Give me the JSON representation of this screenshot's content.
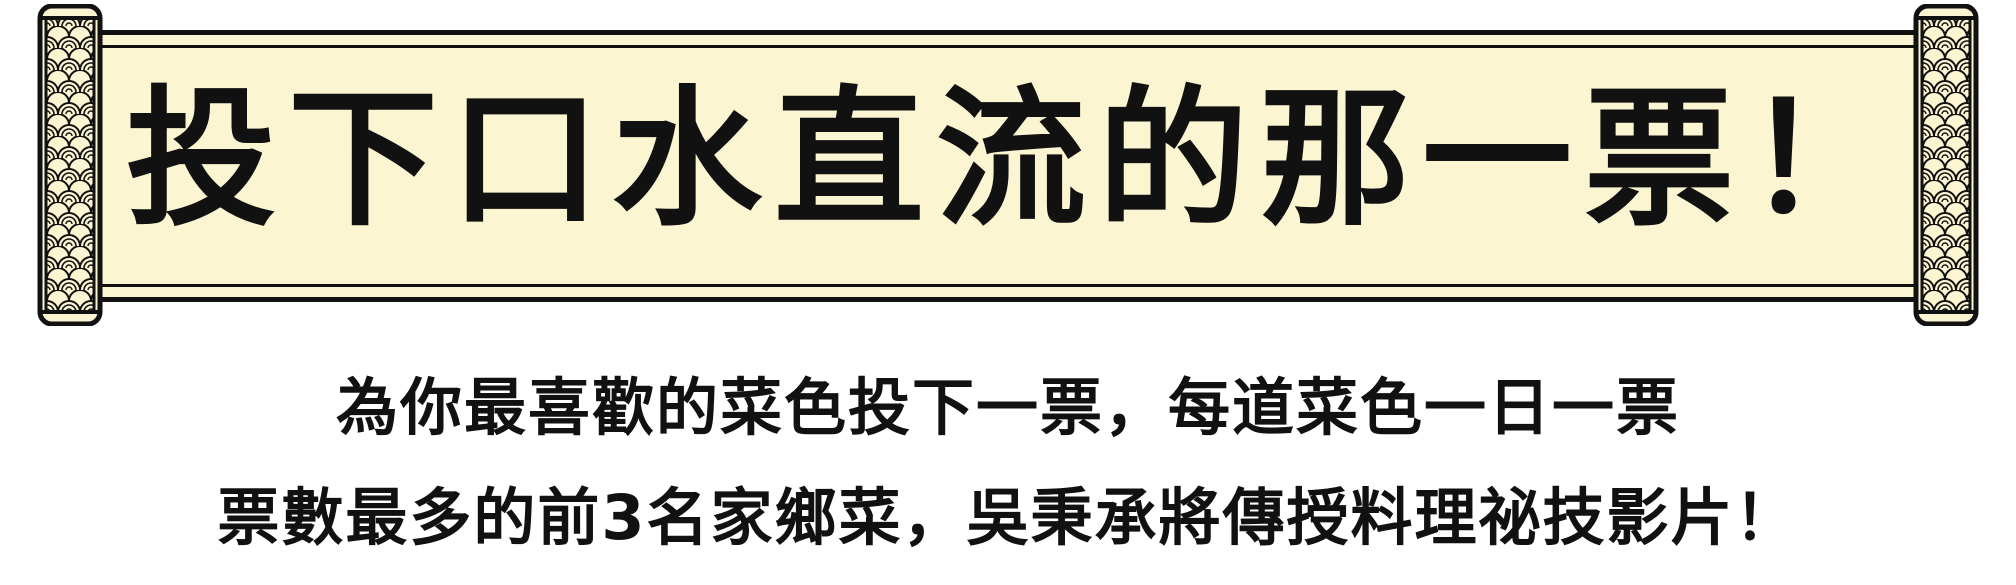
{
  "banner": {
    "title": "投下口水直流的那一票！"
  },
  "subtitle": {
    "line1": "為你最喜歡的菜色投下一票，每道菜色一日一票",
    "line2": "票數最多的前3名家鄉菜，吳秉承將傳授料理祕技影片！"
  },
  "colors": {
    "scroll_paper": "#fcf5d2",
    "outline": "#111111",
    "text": "#111111",
    "background": "#ffffff"
  },
  "icons": {
    "scroll_ends": "wave-pattern-roller-icon"
  }
}
